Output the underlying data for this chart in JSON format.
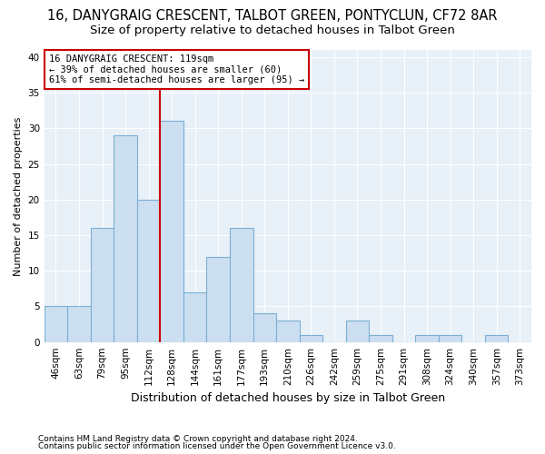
{
  "title": "16, DANYGRAIG CRESCENT, TALBOT GREEN, PONTYCLUN, CF72 8AR",
  "subtitle": "Size of property relative to detached houses in Talbot Green",
  "xlabel": "Distribution of detached houses by size in Talbot Green",
  "ylabel": "Number of detached properties",
  "footnote1": "Contains HM Land Registry data © Crown copyright and database right 2024.",
  "footnote2": "Contains public sector information licensed under the Open Government Licence v3.0.",
  "bin_labels": [
    "46sqm",
    "63sqm",
    "79sqm",
    "95sqm",
    "112sqm",
    "128sqm",
    "144sqm",
    "161sqm",
    "177sqm",
    "193sqm",
    "210sqm",
    "226sqm",
    "242sqm",
    "259sqm",
    "275sqm",
    "291sqm",
    "308sqm",
    "324sqm",
    "340sqm",
    "357sqm",
    "373sqm"
  ],
  "bar_values": [
    5,
    5,
    16,
    29,
    20,
    31,
    7,
    12,
    16,
    4,
    3,
    1,
    0,
    3,
    1,
    0,
    1,
    1,
    0,
    1,
    0
  ],
  "bar_color": "#ccdff0",
  "bar_edge_color": "#7bafd4",
  "vline_x_index": 4.5,
  "vline_color": "#cc0000",
  "annotation_line1": "16 DANYGRAIG CRESCENT: 119sqm",
  "annotation_line2": "← 39% of detached houses are smaller (60)",
  "annotation_line3": "61% of semi-detached houses are larger (95) →",
  "annotation_box_color": "#ffffff",
  "annotation_box_edge": "#cc0000",
  "ylim": [
    0,
    41
  ],
  "yticks": [
    0,
    5,
    10,
    15,
    20,
    25,
    30,
    35,
    40
  ],
  "background_color": "#e8f0f8",
  "title_fontsize": 10.5,
  "subtitle_fontsize": 9.5,
  "xlabel_fontsize": 9,
  "ylabel_fontsize": 8,
  "tick_fontsize": 7.5,
  "footnote_fontsize": 6.5
}
